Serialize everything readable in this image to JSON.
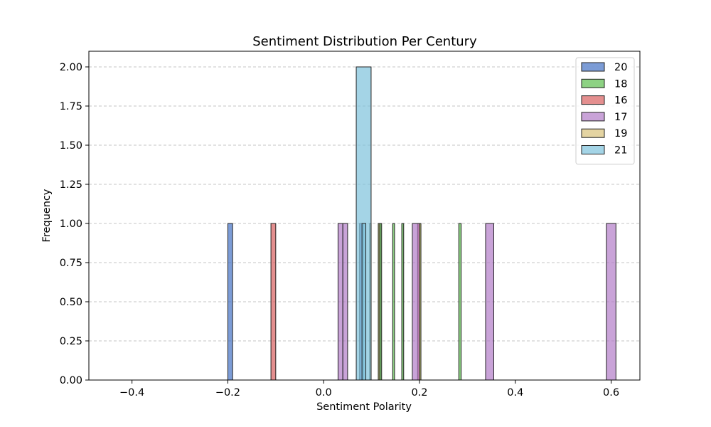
{
  "chart_data": {
    "type": "bar",
    "title": "Sentiment Distribution Per Century",
    "xlabel": "Sentiment Polarity",
    "ylabel": "Frequency",
    "xlim": [
      -0.49,
      0.66
    ],
    "ylim": [
      0,
      2.1
    ],
    "xticks": [
      -0.4,
      -0.2,
      0.0,
      0.2,
      0.4,
      0.6
    ],
    "xtick_labels": [
      "−0.4",
      "−0.2",
      "0.0",
      "0.2",
      "0.4",
      "0.6"
    ],
    "yticks": [
      0,
      0.25,
      0.5,
      0.75,
      1.0,
      1.25,
      1.5,
      1.75,
      2.0
    ],
    "ytick_labels": [
      "0.00",
      "0.25",
      "0.50",
      "0.75",
      "1.00",
      "1.25",
      "1.50",
      "1.75",
      "2.00"
    ],
    "grid": "y-dashed",
    "legend_placement": "top-right",
    "series": [
      {
        "name": "20",
        "color": "#4472C4",
        "bars": [
          {
            "x0": -0.2,
            "x1": -0.19,
            "count": 1
          },
          {
            "x0": 0.075,
            "x1": 0.083,
            "count": 1
          }
        ]
      },
      {
        "name": "18",
        "color": "#5CBF4E",
        "bars": [
          {
            "x0": 0.114,
            "x1": 0.118,
            "count": 1
          },
          {
            "x0": 0.117,
            "x1": 0.121,
            "count": 1
          },
          {
            "x0": 0.144,
            "x1": 0.148,
            "count": 1
          },
          {
            "x0": 0.163,
            "x1": 0.167,
            "count": 1
          },
          {
            "x0": 0.199,
            "x1": 0.203,
            "count": 1
          },
          {
            "x0": 0.282,
            "x1": 0.287,
            "count": 1
          }
        ]
      },
      {
        "name": "16",
        "color": "#D95F5F",
        "bars": [
          {
            "x0": -0.11,
            "x1": -0.1,
            "count": 1
          },
          {
            "x0": 0.196,
            "x1": 0.2,
            "count": 1
          }
        ]
      },
      {
        "name": "17",
        "color": "#B27CC8",
        "bars": [
          {
            "x0": 0.03,
            "x1": 0.04,
            "count": 1
          },
          {
            "x0": 0.04,
            "x1": 0.05,
            "count": 1
          },
          {
            "x0": 0.185,
            "x1": 0.2,
            "count": 1
          },
          {
            "x0": 0.338,
            "x1": 0.355,
            "count": 1
          },
          {
            "x0": 0.59,
            "x1": 0.61,
            "count": 1
          }
        ]
      },
      {
        "name": "19",
        "color": "#D8C27A",
        "bars": [
          {
            "x0": 0.096,
            "x1": 0.099,
            "count": 1
          },
          {
            "x0": 0.114,
            "x1": 0.117,
            "count": 1
          },
          {
            "x0": 0.2,
            "x1": 0.203,
            "count": 1
          }
        ]
      },
      {
        "name": "21",
        "color": "#7EC2DB",
        "bars": [
          {
            "x0": 0.068,
            "x1": 0.099,
            "count": 2
          },
          {
            "x0": 0.08,
            "x1": 0.088,
            "count": 1
          }
        ]
      }
    ]
  }
}
